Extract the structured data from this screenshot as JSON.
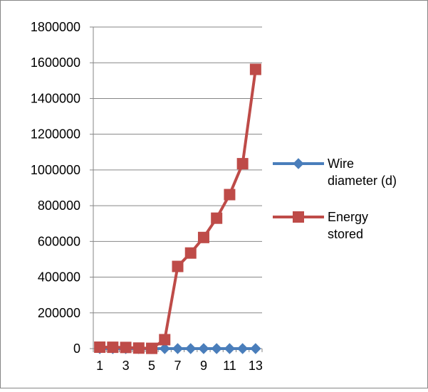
{
  "chart_data": {
    "type": "line",
    "title": "",
    "xlabel": "",
    "ylabel": "",
    "x": [
      1,
      2,
      3,
      4,
      5,
      6,
      7,
      8,
      9,
      10,
      11,
      12,
      13
    ],
    "x_tick_labels": [
      "1",
      "3",
      "5",
      "7",
      "9",
      "11",
      "13"
    ],
    "y_tick_labels": [
      "0",
      "200000",
      "400000",
      "600000",
      "800000",
      "1000000",
      "1200000",
      "1400000",
      "1600000",
      "1800000"
    ],
    "ylim": [
      0,
      1800000
    ],
    "grid": true,
    "legend_position": "right",
    "series": [
      {
        "name": "Wire diameter (d)",
        "legend_lines": [
          "Wire",
          "diameter (d)"
        ],
        "color": "#4a7ebb",
        "marker": "diamond",
        "values": [
          1,
          1,
          1,
          1,
          1,
          1,
          1,
          1,
          1,
          1,
          1,
          1,
          1
        ]
      },
      {
        "name": "Energy stored",
        "legend_lines": [
          "Energy",
          "stored"
        ],
        "color": "#be4b48",
        "marker": "square",
        "values": [
          8000,
          7500,
          6500,
          3000,
          1500,
          50000,
          460000,
          535000,
          622000,
          730000,
          862000,
          1035000,
          1563000
        ]
      }
    ]
  }
}
